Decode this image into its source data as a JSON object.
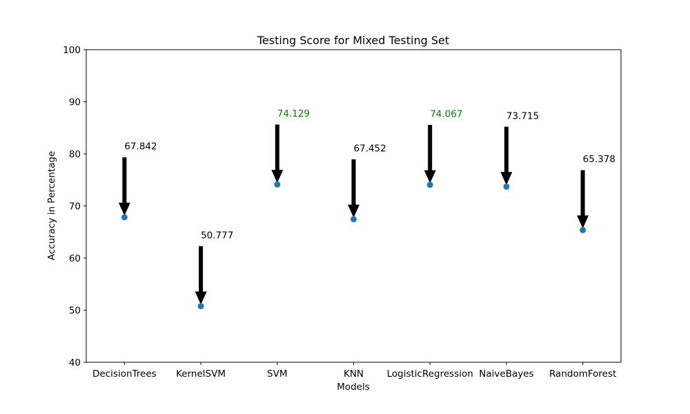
{
  "chart_data": {
    "type": "scatter",
    "title": "Testing Score for Mixed Testing Set",
    "xlabel": "Models",
    "ylabel": "Accuracy in Percentage",
    "categories": [
      "DecisionTrees",
      "KernelSVM",
      "SVM",
      "KNN",
      "LogisticRegression",
      "NaiveBayes",
      "RandomForest"
    ],
    "values": [
      67.842,
      50.777,
      74.129,
      67.452,
      74.067,
      73.715,
      65.378
    ],
    "labels": [
      "67.842",
      "50.777",
      "74.129",
      "67.452",
      "74.067",
      "73.715",
      "65.378"
    ],
    "highlighted": [
      false,
      false,
      true,
      false,
      true,
      false,
      false
    ],
    "ylim": [
      40,
      100
    ],
    "yticks": [
      40,
      50,
      60,
      70,
      80,
      90,
      100
    ],
    "grid": false,
    "colors": {
      "point": "#1f77b4",
      "arrow": "#000000",
      "label": "#000000",
      "highlight_label": "#008000",
      "axis": "#000000"
    }
  }
}
